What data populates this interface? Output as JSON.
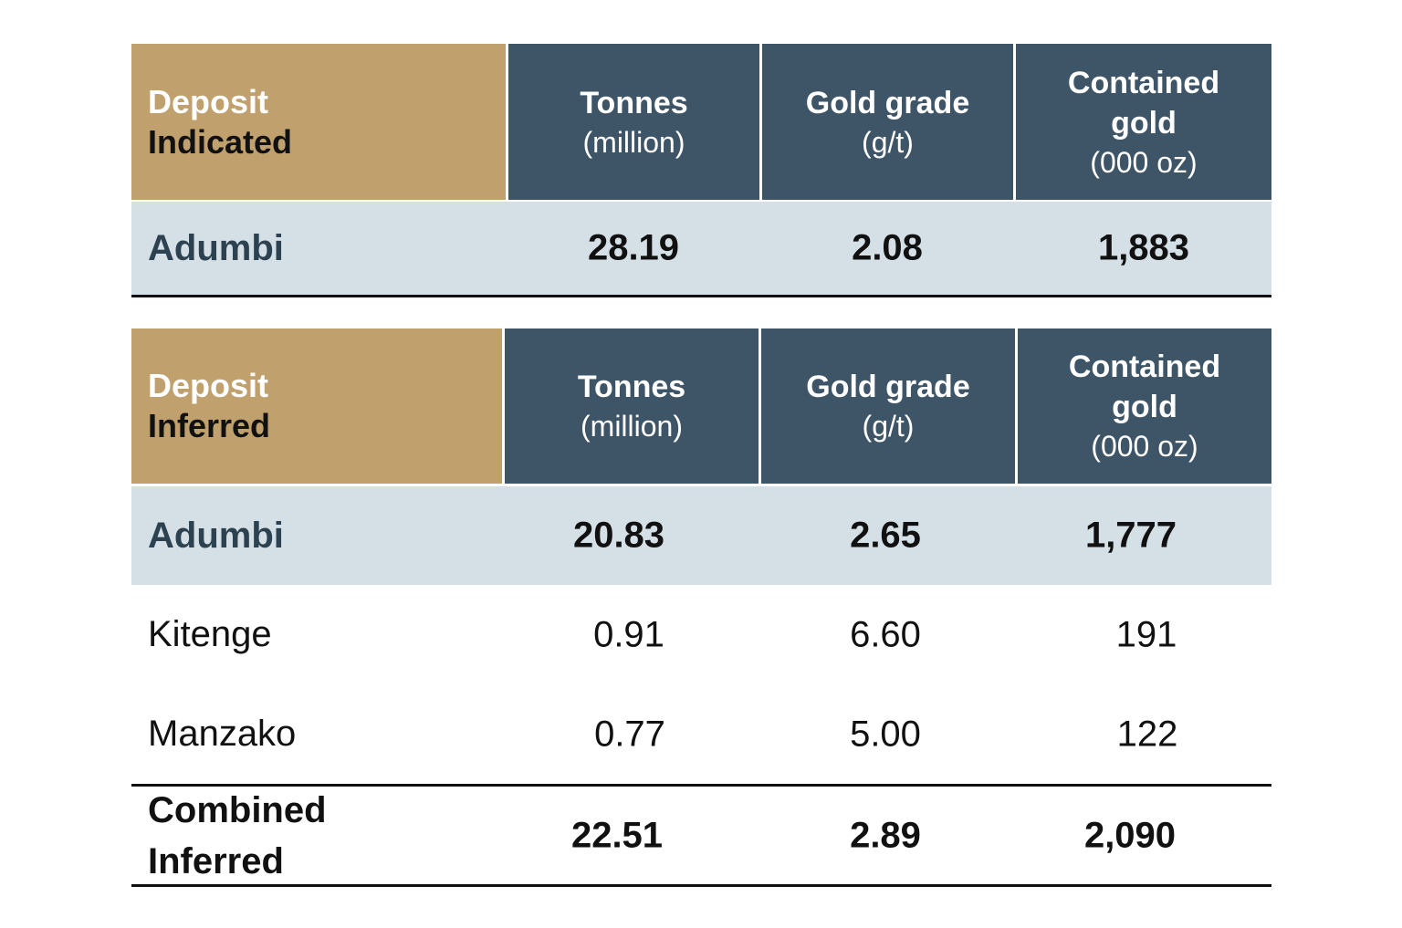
{
  "indicated_table": {
    "header": {
      "label_line1": "Deposit",
      "label_line2": "Indicated",
      "columns": [
        {
          "title": "Tonnes",
          "unit": "(million)"
        },
        {
          "title": "Gold grade",
          "unit": "(g/t)"
        },
        {
          "title_line1": "Contained",
          "title_line2": "gold",
          "unit": "(000 oz)"
        }
      ]
    },
    "rows": [
      {
        "deposit": "Adumbi",
        "tonnes": "28.19",
        "grade": "2.08",
        "contained": "1,883"
      }
    ]
  },
  "inferred_table": {
    "header": {
      "label_line1": "Deposit",
      "label_line2": "Inferred",
      "columns": [
        {
          "title": "Tonnes",
          "unit": "(million)"
        },
        {
          "title": "Gold grade",
          "unit": "(g/t)"
        },
        {
          "title_line1": "Contained",
          "title_line2": "gold",
          "unit": "(000 oz)"
        }
      ]
    },
    "rows": [
      {
        "deposit": "Adumbi",
        "tonnes": "20.83",
        "grade": "2.65",
        "contained": "1,777"
      },
      {
        "deposit": "Kitenge",
        "tonnes": "0.91",
        "grade": "6.60",
        "contained": "191"
      },
      {
        "deposit": "Manzako",
        "tonnes": "0.77",
        "grade": "5.00",
        "contained": "122"
      }
    ],
    "total": {
      "label_line1": "Combined",
      "label_line2": "Inferred",
      "tonnes": "22.51",
      "grade": "2.89",
      "contained": "2,090"
    }
  },
  "colors": {
    "label_header_bg": "#c0a06d",
    "column_header_bg": "#3e5568",
    "highlight_row_bg": "#d5dfe6",
    "deposit_name_text": "#2d4250"
  }
}
